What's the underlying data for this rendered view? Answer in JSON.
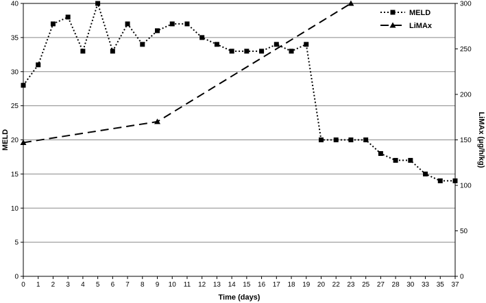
{
  "chart_data": {
    "type": "line",
    "xlabel": "Time (days)",
    "ylabel_left": "MELD",
    "ylabel_right": "LiMAx (µg/h/kg)",
    "ylim_left": [
      0,
      40
    ],
    "ylim_right": [
      0,
      300
    ],
    "yticks_left": [
      "0",
      "5",
      "10",
      "15",
      "20",
      "25",
      "30",
      "35",
      "40"
    ],
    "yticks_right": [
      "0",
      "50",
      "100",
      "150",
      "200",
      "250",
      "300"
    ],
    "categories": [
      "0",
      "1",
      "2",
      "3",
      "4",
      "5",
      "6",
      "7",
      "8",
      "9",
      "10",
      "11",
      "12",
      "13",
      "14",
      "15",
      "16",
      "17",
      "18",
      "19",
      "20",
      "22",
      "23",
      "25",
      "27",
      "28",
      "30",
      "33",
      "35",
      "37"
    ],
    "grid": "horizontal",
    "legend_position": "top-right",
    "series": [
      {
        "name": "MELD",
        "axis": "left",
        "style": "dotted",
        "marker": "square",
        "color": "#000000",
        "points": [
          {
            "x": "0",
            "y": 28
          },
          {
            "x": "1",
            "y": 31
          },
          {
            "x": "2",
            "y": 37
          },
          {
            "x": "3",
            "y": 38
          },
          {
            "x": "4",
            "y": 33
          },
          {
            "x": "5",
            "y": 40
          },
          {
            "x": "6",
            "y": 33
          },
          {
            "x": "7",
            "y": 37
          },
          {
            "x": "8",
            "y": 34
          },
          {
            "x": "9",
            "y": 36
          },
          {
            "x": "10",
            "y": 37
          },
          {
            "x": "11",
            "y": 37
          },
          {
            "x": "12",
            "y": 35
          },
          {
            "x": "13",
            "y": 34
          },
          {
            "x": "14",
            "y": 33
          },
          {
            "x": "15",
            "y": 33
          },
          {
            "x": "16",
            "y": 33
          },
          {
            "x": "17",
            "y": 34
          },
          {
            "x": "18",
            "y": 33
          },
          {
            "x": "19",
            "y": 34
          },
          {
            "x": "20",
            "y": 20
          },
          {
            "x": "22",
            "y": 20
          },
          {
            "x": "23",
            "y": 20
          },
          {
            "x": "25",
            "y": 20
          },
          {
            "x": "27",
            "y": 18
          },
          {
            "x": "28",
            "y": 17
          },
          {
            "x": "30",
            "y": 17
          },
          {
            "x": "33",
            "y": 15
          },
          {
            "x": "35",
            "y": 14
          },
          {
            "x": "37",
            "y": 14
          }
        ]
      },
      {
        "name": "LiMAx",
        "axis": "right",
        "style": "dashed",
        "marker": "triangle",
        "color": "#000000",
        "points": [
          {
            "x": "0",
            "y": 147
          },
          {
            "x": "9",
            "y": 170
          },
          {
            "x": "23",
            "y": 300
          }
        ]
      }
    ]
  }
}
